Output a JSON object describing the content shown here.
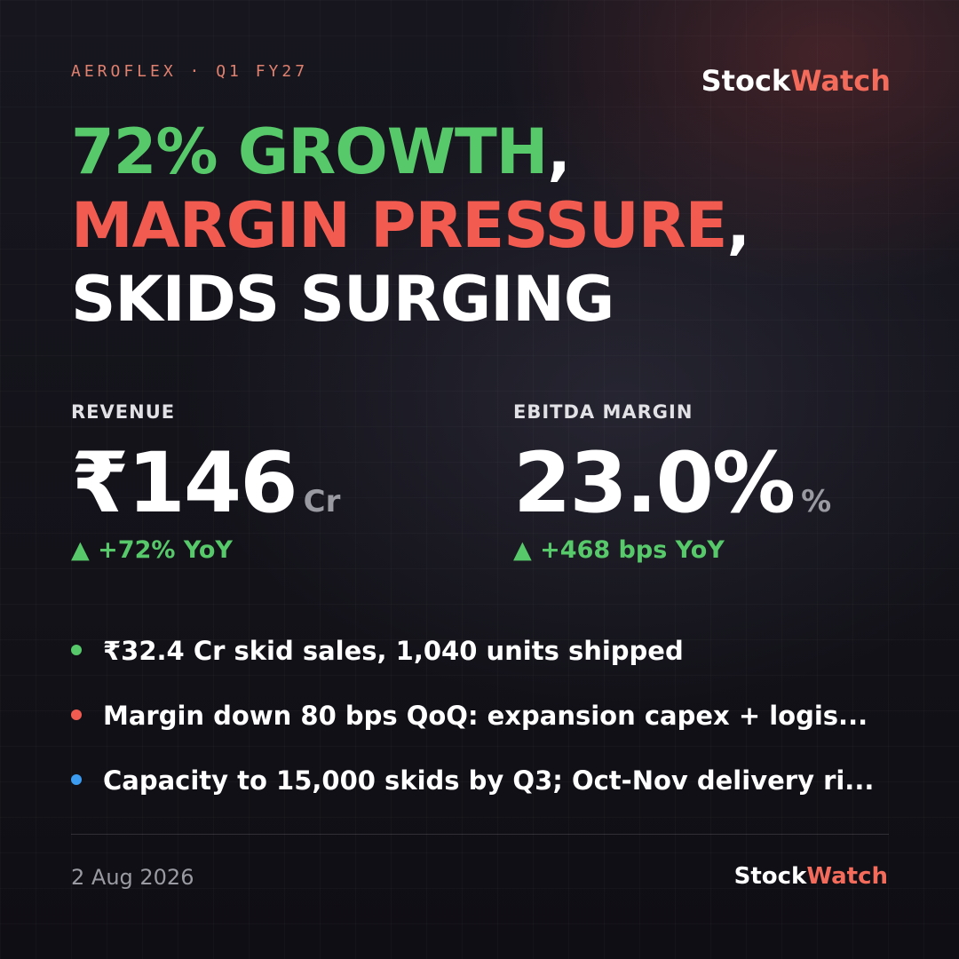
{
  "header": {
    "kicker": "AEROFLEX · Q1 FY27",
    "brand": [
      "Stock",
      "Watch"
    ]
  },
  "headline": [
    [
      "72% GROWTH",
      ","
    ],
    [
      "MARGIN PRESSURE",
      ","
    ],
    [
      "SKIDS SURGING"
    ]
  ],
  "metrics": [
    {
      "label": "REVENUE",
      "value": "₹146",
      "unit": "Cr",
      "change": "▲ +72% YoY"
    },
    {
      "label": "EBITDA MARGIN",
      "value": "23.0%",
      "unit": "%",
      "change": "▲ +468 bps YoY"
    }
  ],
  "bullets": [
    "₹32.4 Cr skid sales, 1,040 units shipped",
    "Margin down 80 bps QoQ: expansion capex + logis...",
    "Capacity to 15,000 skids by Q3; Oct-Nov delivery ri..."
  ],
  "footer": {
    "date": "2 Aug 2026",
    "brand": [
      "Stock",
      "Watch"
    ]
  }
}
